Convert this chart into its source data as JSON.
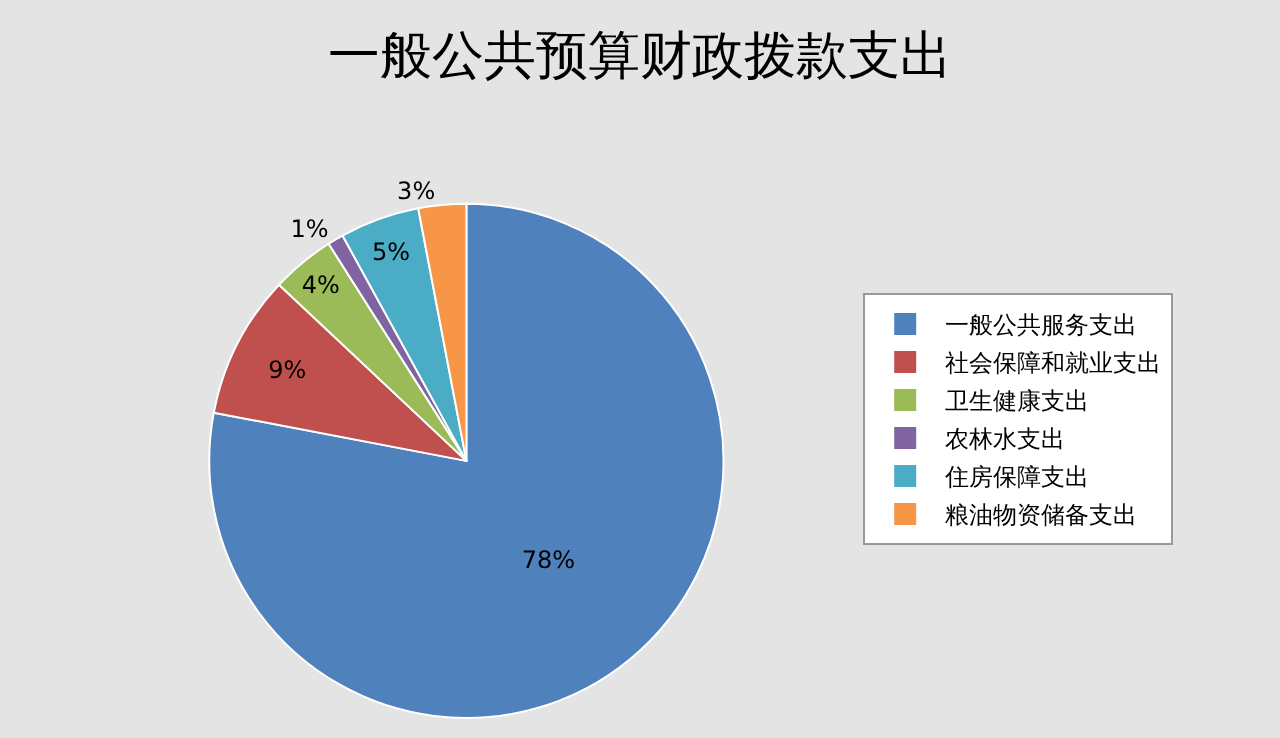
{
  "chart_data": {
    "type": "pie",
    "title": "一般公共预算财政拨款支出",
    "categories": [
      "一般公共服务支出",
      "社会保障和就业支出",
      "卫生健康支出",
      "农林水支出",
      "住房保障支出",
      "粮油物资储备支出"
    ],
    "values": [
      78,
      9,
      4,
      1,
      5,
      3
    ],
    "value_labels": [
      "78%",
      "9%",
      "4%",
      "1%",
      "5%",
      "3%"
    ],
    "colors": [
      "#4f81bd",
      "#c0504d",
      "#9bbb59",
      "#8064a2",
      "#4bacc6",
      "#f79646"
    ],
    "legend": "right"
  }
}
